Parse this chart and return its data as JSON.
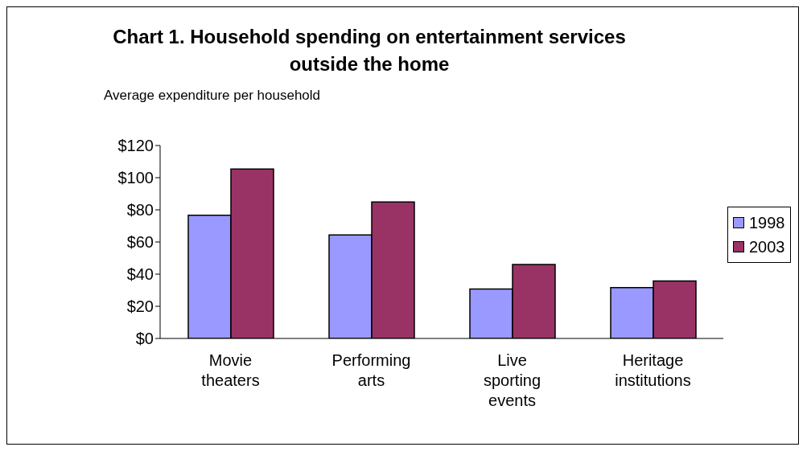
{
  "chart_data": {
    "type": "bar",
    "title": "Chart 1. Household spending on entertainment services outside the home",
    "ylabel": "Average expenditure per household",
    "categories": [
      "Movie theaters",
      "Performing arts",
      "Live sporting events",
      "Heritage institutions"
    ],
    "series": [
      {
        "name": "1998",
        "color": "#9999ff",
        "values": [
          76.6,
          64.4,
          30.7,
          31.6
        ]
      },
      {
        "name": "2003",
        "color": "#993366",
        "values": [
          105.4,
          84.9,
          46.0,
          35.8
        ]
      }
    ],
    "ylim": [
      0,
      120
    ],
    "yticks": [
      {
        "value": 0,
        "label": "$0"
      },
      {
        "value": 20,
        "label": "$20"
      },
      {
        "value": 40,
        "label": "$40"
      },
      {
        "value": 60,
        "label": "$60"
      },
      {
        "value": 80,
        "label": "$80"
      },
      {
        "value": 100,
        "label": "$100"
      },
      {
        "value": 120,
        "label": "$120"
      }
    ],
    "grid": false,
    "legend": "right"
  }
}
